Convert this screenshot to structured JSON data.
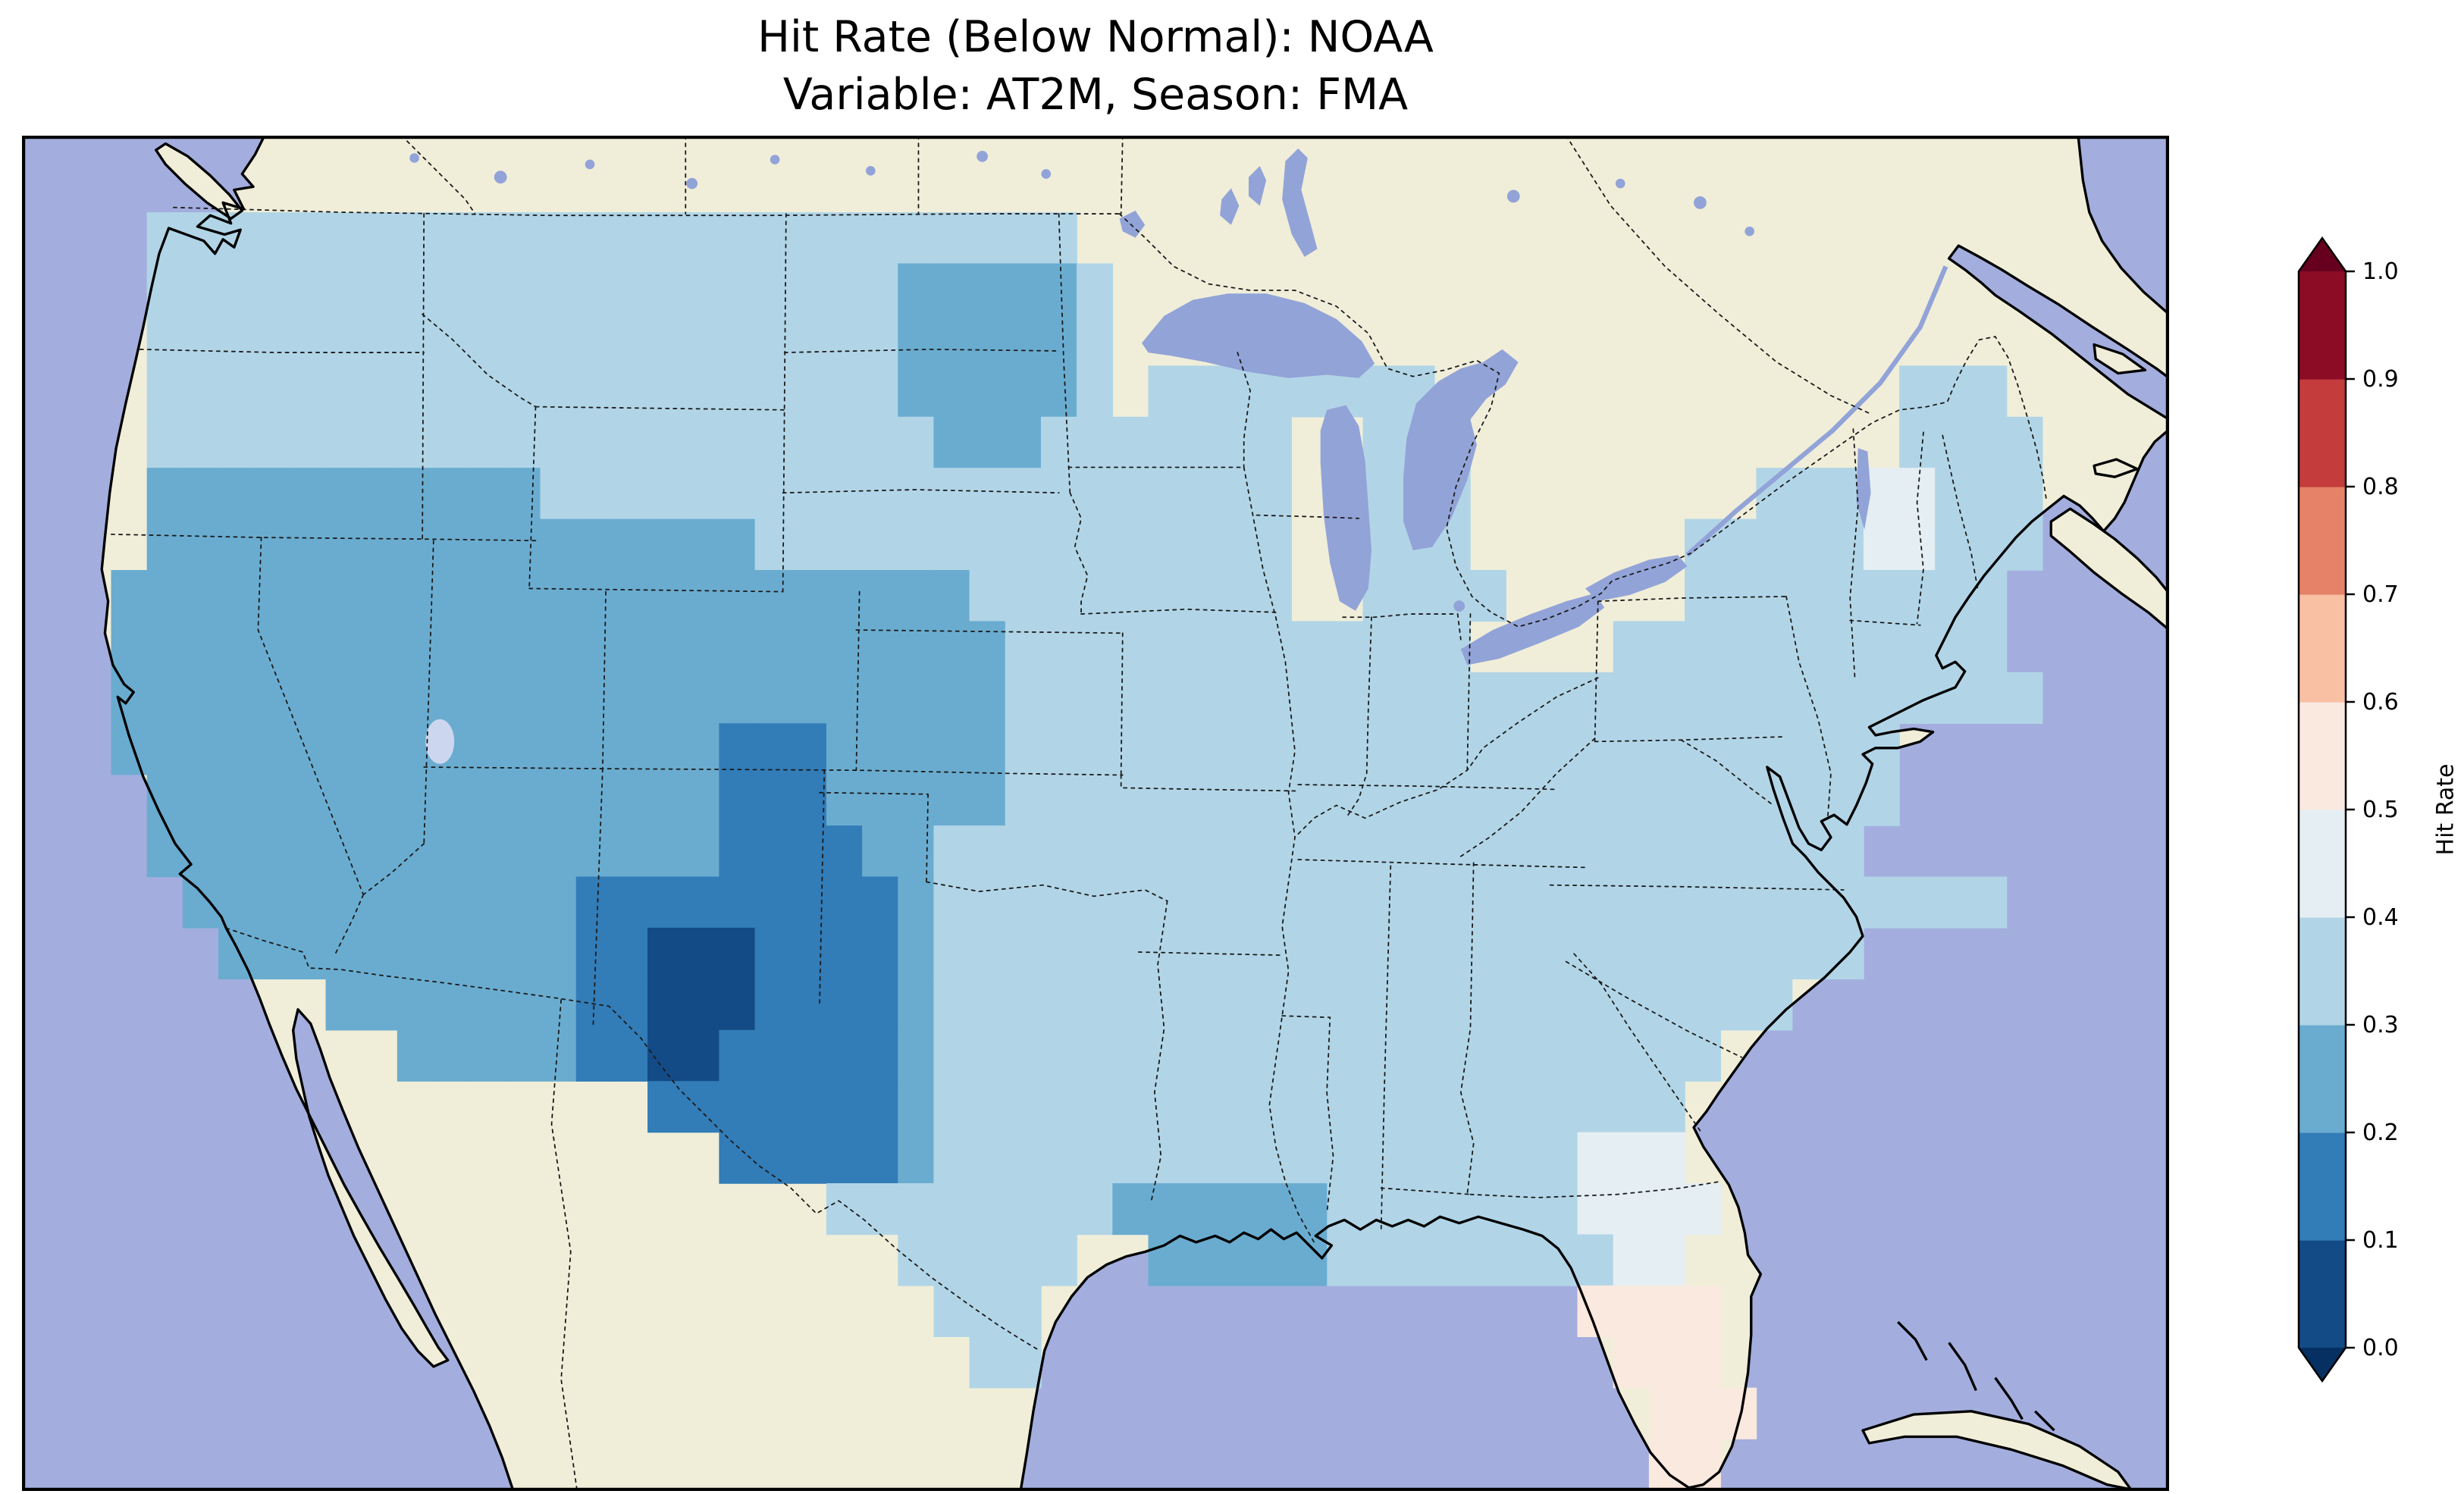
{
  "title": {
    "line1": "Hit Rate (Below Normal): NOAA",
    "line2": "Variable: AT2M, Season: FMA"
  },
  "colorbar": {
    "label": "Hit Rate",
    "ticks": [
      "0.0",
      "0.1",
      "0.2",
      "0.3",
      "0.4",
      "0.5",
      "0.6",
      "0.7",
      "0.8",
      "0.9",
      "1.0"
    ],
    "segment_colors_bottom_to_top": [
      "#134b86",
      "#327cb7",
      "#6aacd0",
      "#b1d5e7",
      "#e4eef3",
      "#fae9df",
      "#f9c0a4",
      "#e58267",
      "#c43c3c",
      "#8c0c25"
    ],
    "extend_below_color": "#053061",
    "extend_above_color": "#67001f"
  },
  "map": {
    "ocean_color": "#a3aede",
    "land_color": "#f0eed9",
    "lake_color": "#92a3d8",
    "salt_lake_color": "#ccd7ef",
    "coastline_color": "#000000",
    "border_color": "#1a1a1a"
  },
  "chart_data": {
    "type": "heatmap",
    "title": "Hit Rate (Below Normal): NOAA",
    "subtitle": "Variable: AT2M, Season: FMA",
    "dataset": "NOAA",
    "variable": "AT2M",
    "season": "FMA",
    "colorbar_label": "Hit Rate",
    "colorbar_range": [
      0.0,
      1.0
    ],
    "colorbar_tick_step": 0.1,
    "colormap": "RdBu_r, discrete 0.1 bins, extended both ends",
    "region": "Contiguous United States",
    "grid_note": "Approximate 1-degree hit-rate grid read from the map. Rows run north to south, columns west to east. Each character is a 0.1-wide hit-rate bin; '.' or absent = no data (outside CONUS).",
    "bin_values": {
      "0": "0.0-0.1",
      "1": "0.1-0.2",
      "2": "0.2-0.3",
      "3": "0.3-0.4",
      "4": "0.4-0.5",
      "5": "0.5-0.6"
    },
    "bin_colors": {
      "0": "#134b86",
      "1": "#327cb7",
      "2": "#6aacd0",
      "3": "#b1d5e7",
      "4": "#e4eef3",
      "5": "#fae9df"
    },
    "rows": [
      "",
      "...33333333333333333333333333",
      "...333333333333333333333222223",
      "...333333333333333333333222223",
      "...333333333333333333333222223.33333333.............333",
      "...33333333333333333333332223333333..333............3333",
      "...22222222222333333333333333333333..333........33344333",
      "...22222222222222222333333333333333..333......3333344333",
      "..222222222222222222222222333333333..3333.....333333333",
      "..22222222222222222222222223333333333333....33333333333",
      "..222222222222222222222222233333333333333333333333333333",
      "..22222222222222222111222223333333333333333333333333",
      "...2222222222222222111222223333333333333333333333333",
      "...222222222222222211112233333333333333333333333333",
      "....222222222221111111112333333333333333333333333333333",
      ".....2222222222110001111233333333333333333333333333",
      "........22222221100011112333333333333333333333333",
      "..........2222211001111123333333333333333333333",
      ".................11111112333333333333333333333",
      "...................111112333333333333333333444",
      "......................3333333322222233333334444",
      "........................33333..222223333333344",
      ".........................333...............5555",
      "..........................33................555",
      ".............................................555",
      ".............................................55"
    ]
  }
}
